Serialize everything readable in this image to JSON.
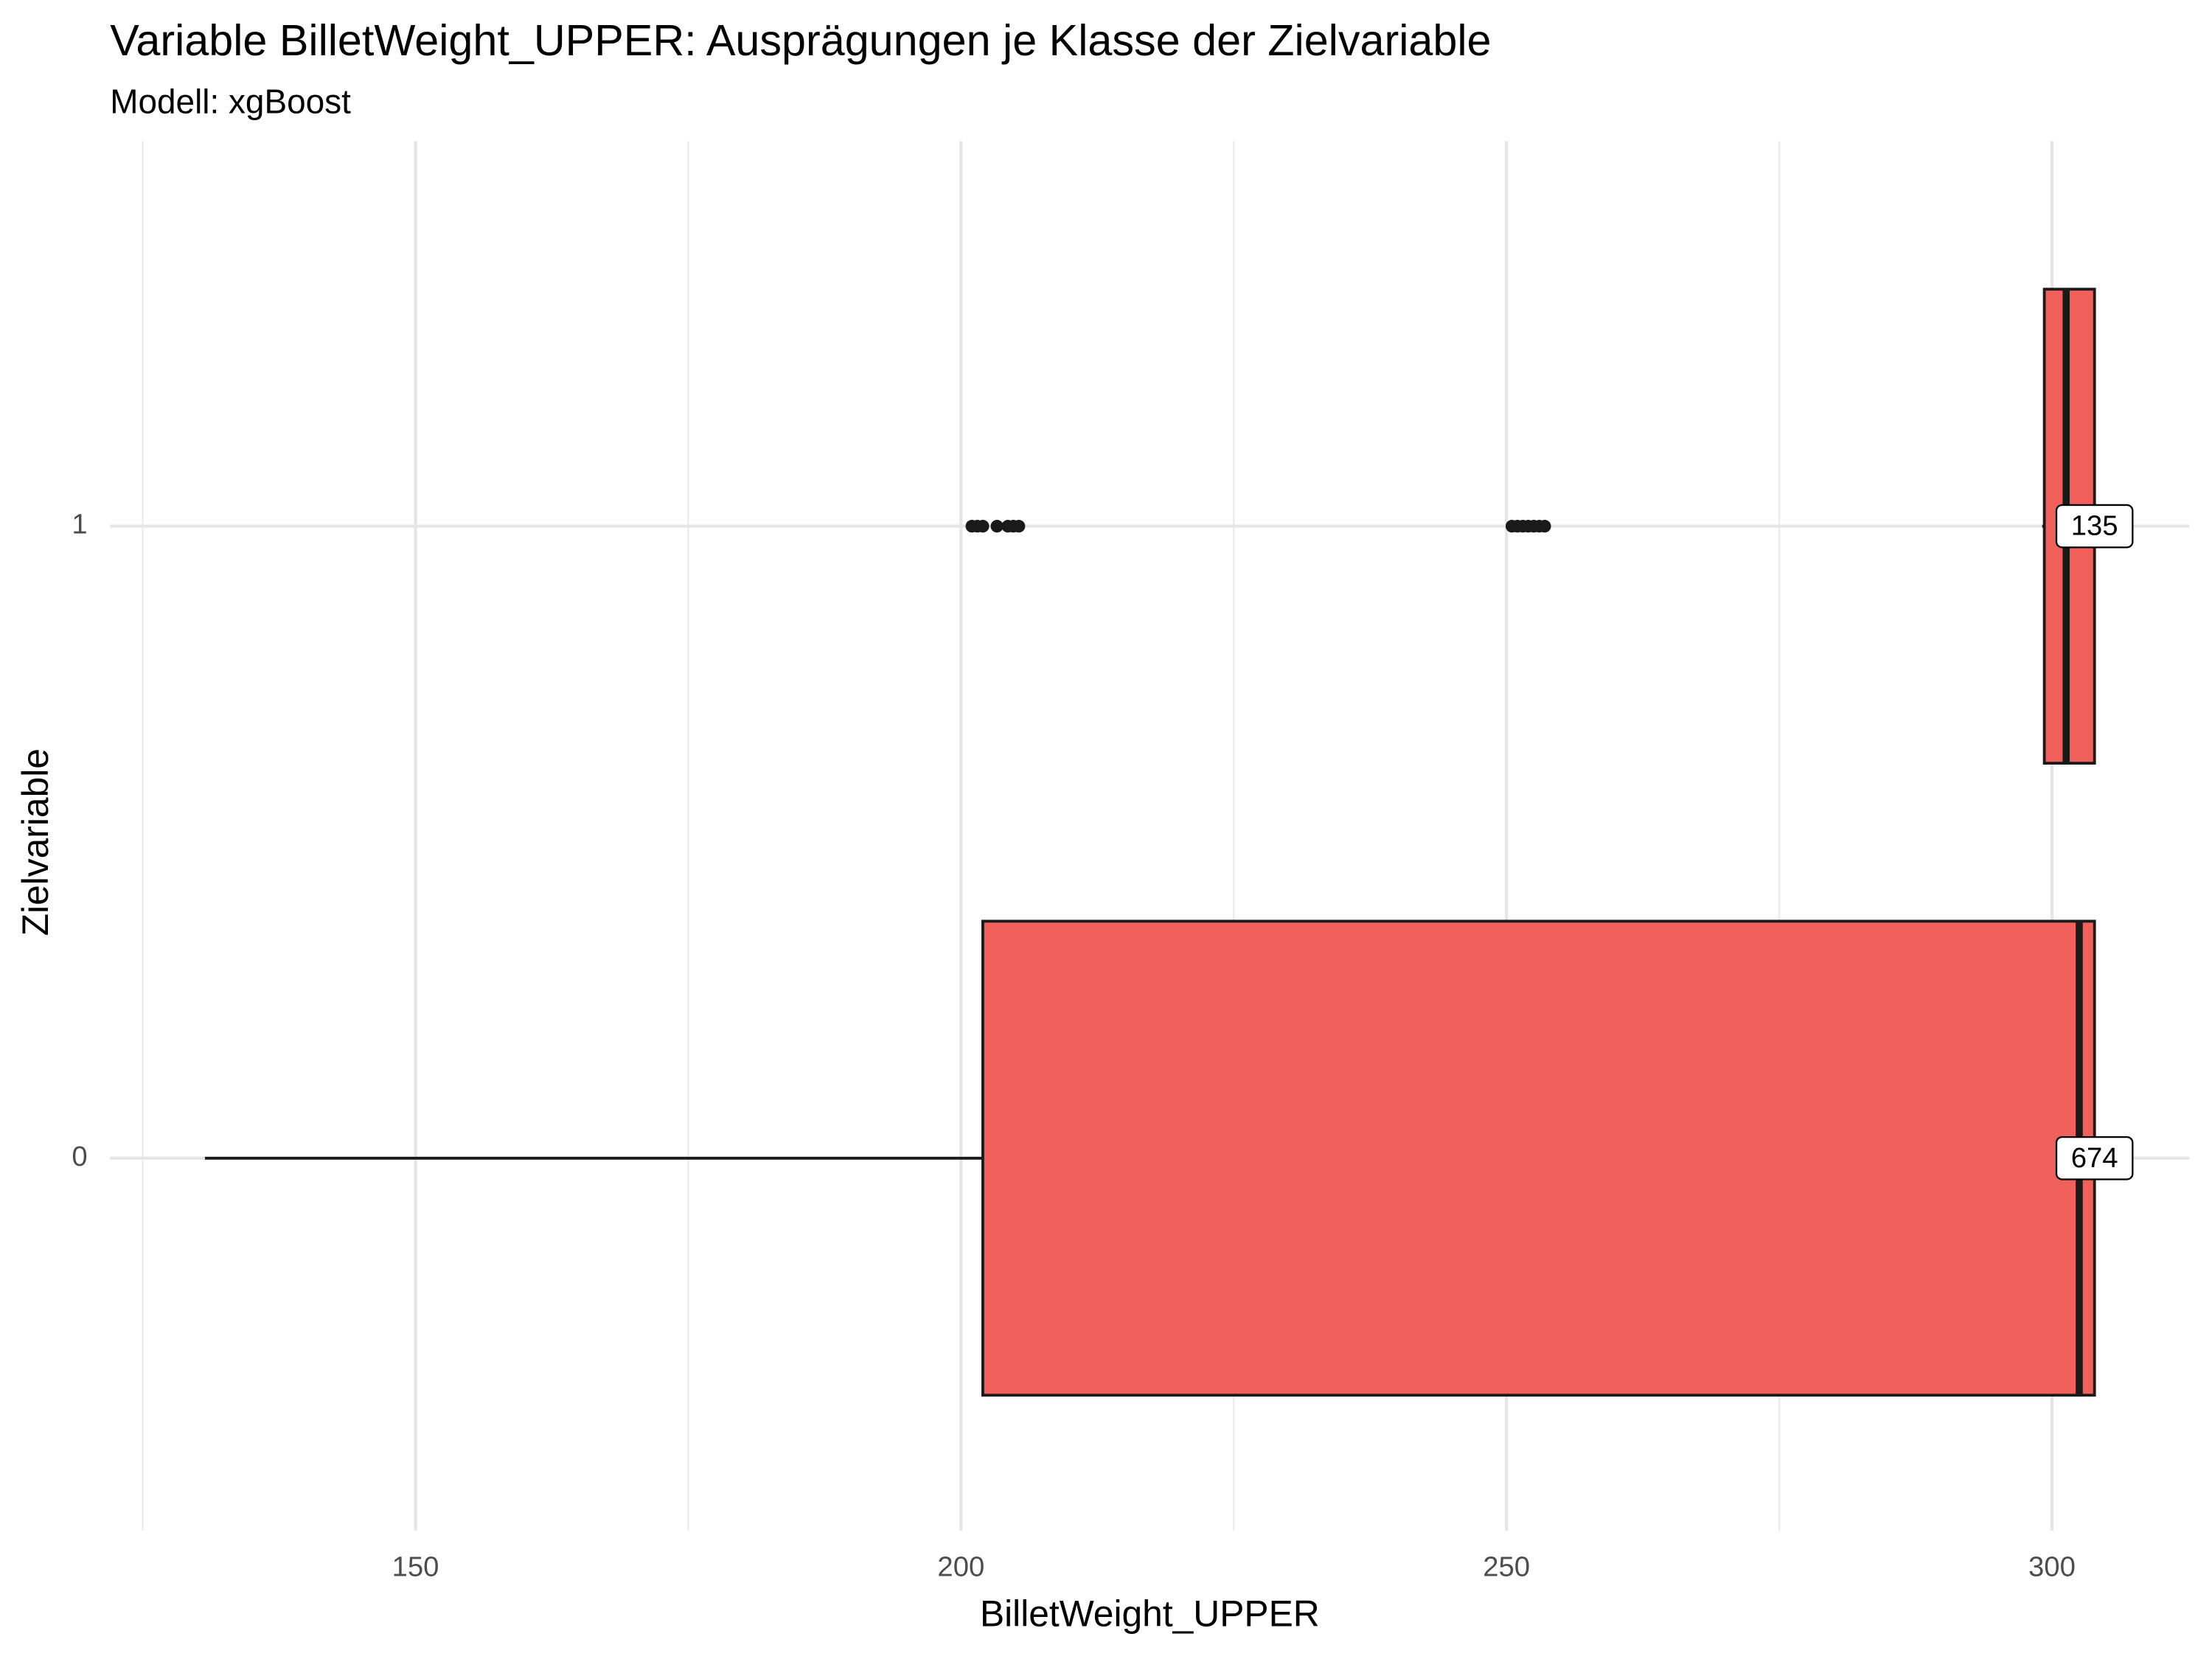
{
  "chart_data": {
    "type": "boxplot",
    "title": "Variable BilletWeight_UPPER: Ausprägungen je Klasse der Zielvariable",
    "subtitle": "Modell: xgBoost",
    "xlabel": "BilletWeight_UPPER",
    "ylabel": "Zielvariable",
    "categories": [
      "0",
      "1"
    ],
    "color": "#f2605c",
    "xlim": [
      122,
      312.6
    ],
    "xticks": [
      150,
      200,
      250,
      300
    ],
    "xminor": [
      125,
      175,
      225,
      275
    ],
    "grid": true,
    "boxes": [
      {
        "whislo": 130.7,
        "q1": 202,
        "med": 302.5,
        "q3": 303.9,
        "whishi": 303.9,
        "fliers": [],
        "n": 674
      },
      {
        "whislo": 299.1,
        "q1": 299.3,
        "med": 301.3,
        "q3": 303.9,
        "whishi": 303.9,
        "fliers": [
          201,
          201.5,
          202,
          203.3,
          204.3,
          204.8,
          205.3,
          250.5,
          251,
          251.5,
          252,
          252.5,
          253,
          253.5
        ],
        "n": 135
      }
    ]
  }
}
